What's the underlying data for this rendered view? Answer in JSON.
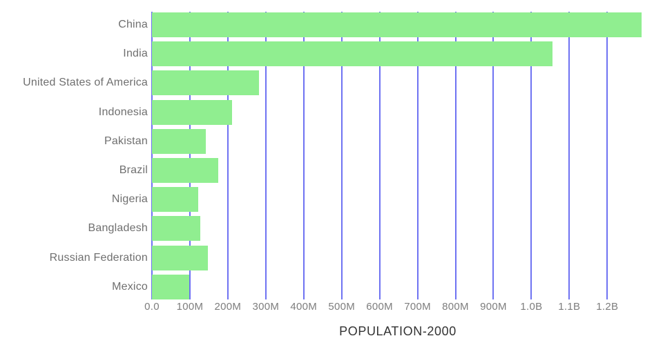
{
  "chart_data": {
    "type": "bar",
    "orientation": "horizontal",
    "title": "POPULATION-2000",
    "unit": "millions of people",
    "categories": [
      "China",
      "India",
      "United States of America",
      "Indonesia",
      "Pakistan",
      "Brazil",
      "Nigeria",
      "Bangladesh",
      "Russian Federation",
      "Mexico"
    ],
    "values": [
      1290.6,
      1056.6,
      281.7,
      211.5,
      142.3,
      174.8,
      122.3,
      127.7,
      146.6,
      98.9
    ],
    "xlim": [
      0,
      1296
    ],
    "grid": true,
    "legend": false,
    "x_ticks": [
      {
        "label": "0.0",
        "value": 0
      },
      {
        "label": "100M",
        "value": 100
      },
      {
        "label": "200M",
        "value": 200
      },
      {
        "label": "300M",
        "value": 300
      },
      {
        "label": "400M",
        "value": 400
      },
      {
        "label": "500M",
        "value": 500
      },
      {
        "label": "600M",
        "value": 600
      },
      {
        "label": "700M",
        "value": 700
      },
      {
        "label": "800M",
        "value": 800
      },
      {
        "label": "900M",
        "value": 900
      },
      {
        "label": "1.0B",
        "value": 1000
      },
      {
        "label": "1.1B",
        "value": 1100
      },
      {
        "label": "1.2B",
        "value": 1200
      }
    ],
    "colors": {
      "bar": "#90ee90",
      "gridline": "#6e72f2",
      "category_label": "#6f6f6f",
      "tick_label": "#7d7d7d",
      "title": "#333333",
      "background": "#ffffff"
    }
  }
}
